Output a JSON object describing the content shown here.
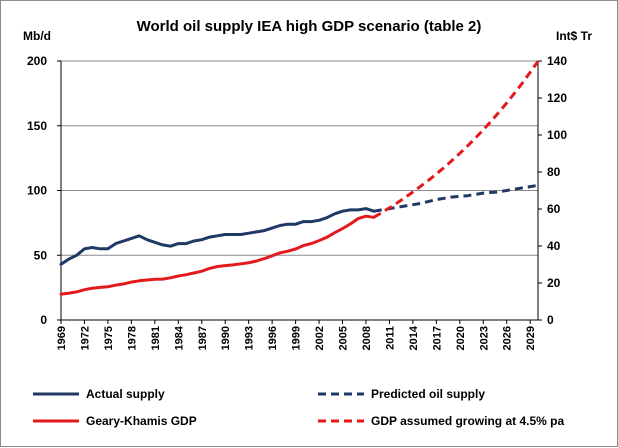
{
  "chart_data": {
    "type": "line",
    "title": "World oil supply IEA high GDP scenario (table 2)",
    "ylabel_left": "Mb/d",
    "ylabel_right": "Int$ Tr",
    "ylim_left": [
      0,
      200
    ],
    "ylim_right": [
      0,
      140
    ],
    "yticks_left": [
      "0",
      "50",
      "100",
      "150",
      "200"
    ],
    "yticks_right": [
      "0",
      "20",
      "40",
      "60",
      "80",
      "100",
      "120",
      "140"
    ],
    "xlim": [
      1969,
      2030
    ],
    "xticks": [
      "1969",
      "1972",
      "1975",
      "1978",
      "1981",
      "1984",
      "1987",
      "1990",
      "1993",
      "1996",
      "1999",
      "2002",
      "2005",
      "2008",
      "2011",
      "2014",
      "2017",
      "2020",
      "2023",
      "2026",
      "2029"
    ],
    "grid": "horizontal",
    "legend_position": "bottom",
    "series": [
      {
        "name": "Actual supply",
        "axis": "left",
        "color": "#1f3864",
        "style": "solid",
        "x": [
          1969,
          1970,
          1971,
          1972,
          1973,
          1974,
          1975,
          1976,
          1977,
          1978,
          1979,
          1980,
          1981,
          1982,
          1983,
          1984,
          1985,
          1986,
          1987,
          1988,
          1989,
          1990,
          1991,
          1992,
          1993,
          1994,
          1995,
          1996,
          1997,
          1998,
          1999,
          2000,
          2001,
          2002,
          2003,
          2004,
          2005,
          2006,
          2007,
          2008,
          2009
        ],
        "values": [
          43,
          47,
          50,
          55,
          56,
          55,
          55,
          59,
          61,
          63,
          65,
          62,
          60,
          58,
          57,
          59,
          59,
          61,
          62,
          64,
          65,
          66,
          66,
          66,
          67,
          68,
          69,
          71,
          73,
          74,
          74,
          76,
          76,
          77,
          79,
          82,
          84,
          85,
          85,
          86,
          84
        ]
      },
      {
        "name": "Predicted oil supply",
        "axis": "left",
        "color": "#1f3864",
        "style": "dashed",
        "x": [
          2009,
          2011,
          2013,
          2015,
          2017,
          2019,
          2021,
          2023,
          2025,
          2027,
          2029,
          2030
        ],
        "values": [
          84,
          86,
          88,
          90,
          93,
          95,
          96,
          98,
          99,
          101,
          103,
          104
        ]
      },
      {
        "name": "Geary-Khamis GDP",
        "axis": "right",
        "color": "#e31a1c",
        "style": "solid",
        "x": [
          1969,
          1970,
          1971,
          1972,
          1973,
          1974,
          1975,
          1976,
          1977,
          1978,
          1979,
          1980,
          1981,
          1982,
          1983,
          1984,
          1985,
          1986,
          1987,
          1988,
          1989,
          1990,
          1991,
          1992,
          1993,
          1994,
          1995,
          1996,
          1997,
          1998,
          1999,
          2000,
          2001,
          2002,
          2003,
          2004,
          2005,
          2006,
          2007,
          2008,
          2009
        ],
        "values": [
          14,
          14.5,
          15.2,
          16.4,
          17.2,
          17.6,
          18.0,
          18.8,
          19.5,
          20.5,
          21.2,
          21.6,
          22.0,
          22.1,
          22.8,
          23.8,
          24.5,
          25.4,
          26.4,
          27.9,
          28.9,
          29.4,
          29.8,
          30.4,
          30.9,
          31.9,
          33.2,
          34.7,
          36.3,
          37.2,
          38.4,
          40.2,
          41.3,
          42.9,
          44.7,
          47.2,
          49.4,
          51.9,
          54.8,
          56.1,
          55.5
        ]
      },
      {
        "name": "GDP assumed growing at 4.5% pa",
        "axis": "right",
        "color": "#e31a1c",
        "style": "dashed",
        "x": [
          2009,
          2010,
          2011,
          2012,
          2013,
          2014,
          2015,
          2016,
          2017,
          2018,
          2019,
          2020,
          2021,
          2022,
          2023,
          2024,
          2025,
          2026,
          2027,
          2028,
          2029,
          2030
        ],
        "values": [
          55.5,
          58.0,
          60.6,
          63.3,
          66.2,
          69.2,
          72.3,
          75.5,
          78.9,
          82.5,
          86.2,
          90.1,
          94.1,
          98.4,
          102.8,
          107.4,
          112.3,
          117.3,
          122.6,
          128.1,
          133.9,
          139.9
        ]
      }
    ]
  }
}
